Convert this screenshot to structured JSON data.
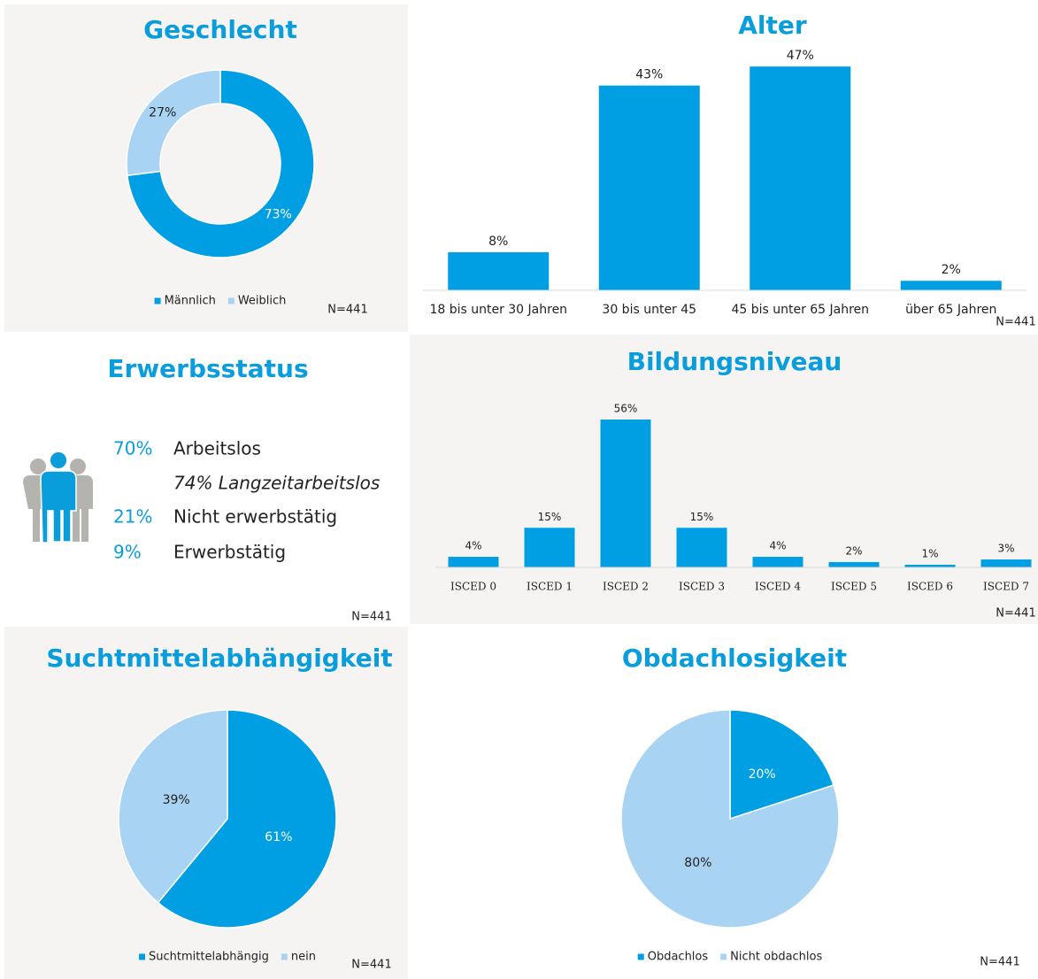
{
  "chart_data": [
    {
      "type": "donut",
      "title": "Geschlecht",
      "categories": [
        "Männlich",
        "Weiblich"
      ],
      "values": [
        73,
        27
      ],
      "value_labels": [
        "73%",
        "27%"
      ],
      "colors": [
        "#009fe3",
        "#a9d3f3"
      ],
      "legend": "bottom",
      "note": "N=441"
    },
    {
      "type": "bar",
      "title": "Alter",
      "categories": [
        "18 bis unter 30 Jahren",
        "30 bis unter 45",
        "45 bis unter 65 Jahren",
        "über 65 Jahren"
      ],
      "values": [
        8,
        43,
        47,
        2
      ],
      "value_labels": [
        "8%",
        "43%",
        "47%",
        "2%"
      ],
      "color": "#009fe3",
      "ylim": [
        0,
        50
      ],
      "note": "N=441"
    },
    {
      "type": "bar",
      "title": "Bildungsniveau",
      "categories": [
        "ISCED 0",
        "ISCED 1",
        "ISCED 2",
        "ISCED 3",
        "ISCED 4",
        "ISCED 5",
        "ISCED 6",
        "ISCED 7"
      ],
      "values": [
        4,
        15,
        56,
        15,
        4,
        2,
        1,
        3
      ],
      "value_labels": [
        "4%",
        "15%",
        "56%",
        "15%",
        "4%",
        "2%",
        "1%",
        "3%"
      ],
      "color": "#009fe3",
      "ylim": [
        0,
        60
      ],
      "note": "N=441"
    },
    {
      "type": "pie",
      "title": "Suchtmittelabhängigkeit",
      "categories": [
        "Suchtmittelabhängig",
        "nein"
      ],
      "values": [
        61,
        39
      ],
      "value_labels": [
        "61%",
        "39%"
      ],
      "colors": [
        "#009fe3",
        "#a9d3f3"
      ],
      "legend": "bottom",
      "note": "N=441"
    },
    {
      "type": "pie",
      "title": "Obdachlosigkeit",
      "categories": [
        "Obdachlos",
        "Nicht obdachlos"
      ],
      "values": [
        20,
        80
      ],
      "value_labels": [
        "20%",
        "80%"
      ],
      "colors": [
        "#009fe3",
        "#a9d3f3"
      ],
      "legend": "bottom",
      "note": "N=441"
    }
  ],
  "erwerbsstatus": {
    "title": "Erwerbsstatus",
    "items": [
      {
        "value": "70%",
        "label": "Arbeitslos"
      },
      {
        "value": "21%",
        "label": "Nicht erwerbstätig"
      },
      {
        "value": "9%",
        "label": "Erwerbstätig"
      }
    ],
    "sub_item": "74% Langzeitarbeitslos",
    "note": "N=441"
  }
}
